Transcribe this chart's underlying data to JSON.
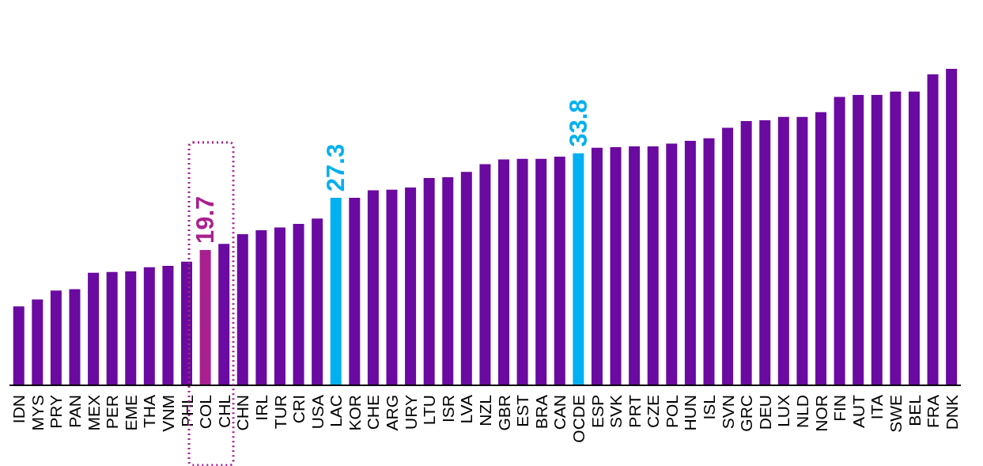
{
  "chart_data": {
    "type": "bar",
    "categories": [
      "IDN",
      "MYS",
      "PRY",
      "PAN",
      "MEX",
      "PER",
      "EME",
      "THA",
      "VNM",
      "PHL",
      "COL",
      "CHL",
      "CHN",
      "IRL",
      "TUR",
      "CRI",
      "USA",
      "LAC",
      "KOR",
      "CHE",
      "ARG",
      "URY",
      "LTU",
      "ISR",
      "LVA",
      "NZL",
      "GBR",
      "EST",
      "BRA",
      "CAN",
      "OCDE",
      "ESP",
      "SVK",
      "PRT",
      "CZE",
      "POL",
      "HUN",
      "ISL",
      "SVN",
      "GRC",
      "DEU",
      "LUX",
      "NLD",
      "NOR",
      "FIN",
      "AUT",
      "ITA",
      "SWE",
      "BEL",
      "FRA",
      "DNK"
    ],
    "values": [
      11.5,
      12.5,
      13.8,
      14.0,
      16.4,
      16.5,
      16.6,
      17.2,
      17.4,
      18.0,
      19.7,
      20.6,
      22.0,
      22.6,
      23.0,
      23.5,
      24.3,
      27.3,
      27.3,
      28.4,
      28.5,
      28.8,
      30.2,
      30.3,
      31.1,
      32.2,
      32.9,
      33.0,
      33.0,
      33.3,
      33.8,
      34.6,
      34.7,
      34.8,
      34.8,
      35.2,
      35.6,
      36.0,
      37.5,
      38.5,
      38.6,
      39.1,
      39.1,
      39.8,
      42.0,
      42.3,
      42.3,
      42.8,
      42.8,
      45.3,
      46.1
    ],
    "colors": [
      "#6a0aa0",
      "#6a0aa0",
      "#6a0aa0",
      "#6a0aa0",
      "#6a0aa0",
      "#6a0aa0",
      "#6a0aa0",
      "#6a0aa0",
      "#6a0aa0",
      "#6a0aa0",
      "#a8208f",
      "#6a0aa0",
      "#6a0aa0",
      "#6a0aa0",
      "#6a0aa0",
      "#6a0aa0",
      "#6a0aa0",
      "#00b0f0",
      "#6a0aa0",
      "#6a0aa0",
      "#6a0aa0",
      "#6a0aa0",
      "#6a0aa0",
      "#6a0aa0",
      "#6a0aa0",
      "#6a0aa0",
      "#6a0aa0",
      "#6a0aa0",
      "#6a0aa0",
      "#6a0aa0",
      "#00b0f0",
      "#6a0aa0",
      "#6a0aa0",
      "#6a0aa0",
      "#6a0aa0",
      "#6a0aa0",
      "#6a0aa0",
      "#6a0aa0",
      "#6a0aa0",
      "#6a0aa0",
      "#6a0aa0",
      "#6a0aa0",
      "#6a0aa0",
      "#6a0aa0",
      "#6a0aa0",
      "#6a0aa0",
      "#6a0aa0",
      "#6a0aa0",
      "#6a0aa0",
      "#6a0aa0",
      "#6a0aa0"
    ],
    "value_labels": [
      null,
      null,
      null,
      null,
      null,
      null,
      null,
      null,
      null,
      null,
      "19.7",
      null,
      null,
      null,
      null,
      null,
      null,
      "27.3",
      null,
      null,
      null,
      null,
      null,
      null,
      null,
      null,
      null,
      null,
      null,
      null,
      "33.8",
      null,
      null,
      null,
      null,
      null,
      null,
      null,
      null,
      null,
      null,
      null,
      null,
      null,
      null,
      null,
      null,
      null,
      null,
      null,
      null
    ],
    "grid": false,
    "legend": false
  }
}
